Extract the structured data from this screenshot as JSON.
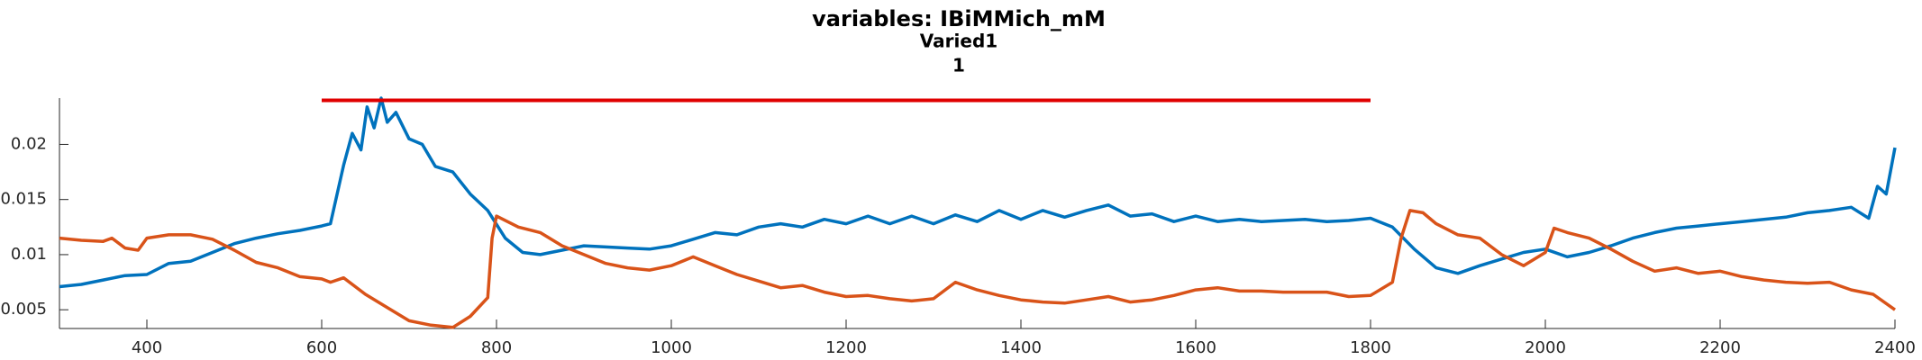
{
  "chart_data": {
    "type": "line",
    "title": "variables: IBiMMich_mM",
    "subtitle": "Varied1",
    "subtitle2": "1",
    "xlim": [
      300,
      2400
    ],
    "ylim": [
      0.0033,
      0.0242
    ],
    "xticks": [
      400,
      600,
      800,
      1000,
      1200,
      1400,
      1600,
      1800,
      2000,
      2200,
      2400
    ],
    "yticks": [
      0.005,
      0.01,
      0.015,
      0.02
    ],
    "reference_line": {
      "x": [
        600,
        1800
      ],
      "y": 0.024,
      "color": "#e00000"
    },
    "series": [
      {
        "color": "#0072bd",
        "x": [
          300,
          325,
          350,
          375,
          400,
          425,
          450,
          475,
          500,
          525,
          550,
          575,
          600,
          610,
          625,
          635,
          645,
          652,
          660,
          668,
          675,
          685,
          700,
          715,
          730,
          750,
          770,
          790,
          810,
          830,
          850,
          875,
          900,
          925,
          950,
          975,
          1000,
          1025,
          1050,
          1075,
          1100,
          1125,
          1150,
          1175,
          1200,
          1225,
          1250,
          1275,
          1300,
          1325,
          1350,
          1375,
          1400,
          1425,
          1450,
          1475,
          1500,
          1525,
          1550,
          1575,
          1600,
          1625,
          1650,
          1675,
          1700,
          1725,
          1750,
          1775,
          1800,
          1825,
          1850,
          1875,
          1900,
          1925,
          1950,
          1975,
          2000,
          2025,
          2050,
          2075,
          2100,
          2125,
          2150,
          2175,
          2200,
          2225,
          2250,
          2275,
          2300,
          2325,
          2350,
          2370,
          2380,
          2390,
          2400
        ],
        "values": [
          0.0071,
          0.0073,
          0.0077,
          0.0081,
          0.0082,
          0.0092,
          0.0094,
          0.0102,
          0.011,
          0.0115,
          0.0119,
          0.0122,
          0.0126,
          0.0128,
          0.0181,
          0.021,
          0.0195,
          0.0234,
          0.0215,
          0.0242,
          0.022,
          0.0229,
          0.0205,
          0.02,
          0.018,
          0.0175,
          0.0155,
          0.014,
          0.0115,
          0.0102,
          0.01,
          0.0104,
          0.0108,
          0.0107,
          0.0106,
          0.0105,
          0.0108,
          0.0114,
          0.012,
          0.0118,
          0.0125,
          0.0128,
          0.0125,
          0.0132,
          0.0128,
          0.0135,
          0.0128,
          0.0135,
          0.0128,
          0.0136,
          0.013,
          0.014,
          0.0132,
          0.014,
          0.0134,
          0.014,
          0.0145,
          0.0135,
          0.0137,
          0.013,
          0.0135,
          0.013,
          0.0132,
          0.013,
          0.0131,
          0.0132,
          0.013,
          0.0131,
          0.0133,
          0.0125,
          0.0105,
          0.0088,
          0.0083,
          0.009,
          0.0096,
          0.0102,
          0.0105,
          0.0098,
          0.0102,
          0.0108,
          0.0115,
          0.012,
          0.0124,
          0.0126,
          0.0128,
          0.013,
          0.0132,
          0.0134,
          0.0138,
          0.014,
          0.0143,
          0.0133,
          0.0162,
          0.0155,
          0.0197
        ]
      },
      {
        "color": "#d95319",
        "x": [
          300,
          325,
          350,
          360,
          375,
          390,
          400,
          425,
          450,
          475,
          500,
          525,
          550,
          575,
          600,
          610,
          625,
          650,
          675,
          700,
          725,
          750,
          770,
          790,
          795,
          800,
          825,
          850,
          875,
          900,
          925,
          950,
          975,
          1000,
          1025,
          1050,
          1075,
          1100,
          1125,
          1150,
          1175,
          1200,
          1225,
          1250,
          1275,
          1300,
          1325,
          1350,
          1375,
          1400,
          1425,
          1450,
          1475,
          1500,
          1525,
          1550,
          1575,
          1600,
          1625,
          1650,
          1675,
          1700,
          1725,
          1750,
          1775,
          1800,
          1825,
          1835,
          1845,
          1860,
          1875,
          1900,
          1925,
          1950,
          1975,
          2000,
          2010,
          2025,
          2050,
          2075,
          2100,
          2125,
          2150,
          2175,
          2200,
          2225,
          2250,
          2275,
          2300,
          2325,
          2350,
          2375,
          2400
        ],
        "values": [
          0.0115,
          0.0113,
          0.0112,
          0.0115,
          0.0106,
          0.0104,
          0.0115,
          0.0118,
          0.0118,
          0.0114,
          0.0104,
          0.0093,
          0.0088,
          0.008,
          0.0078,
          0.0075,
          0.0079,
          0.0064,
          0.0052,
          0.004,
          0.0036,
          0.0034,
          0.0044,
          0.0061,
          0.0115,
          0.0135,
          0.0125,
          0.012,
          0.0108,
          0.01,
          0.0092,
          0.0088,
          0.0086,
          0.009,
          0.0098,
          0.009,
          0.0082,
          0.0076,
          0.007,
          0.0072,
          0.0066,
          0.0062,
          0.0063,
          0.006,
          0.0058,
          0.006,
          0.0075,
          0.0068,
          0.0063,
          0.0059,
          0.0057,
          0.0056,
          0.0059,
          0.0062,
          0.0057,
          0.0059,
          0.0063,
          0.0068,
          0.007,
          0.0067,
          0.0067,
          0.0066,
          0.0066,
          0.0066,
          0.0062,
          0.0063,
          0.0075,
          0.0115,
          0.014,
          0.0138,
          0.0128,
          0.0118,
          0.0115,
          0.01,
          0.009,
          0.0102,
          0.0124,
          0.012,
          0.0115,
          0.0105,
          0.0094,
          0.0085,
          0.0088,
          0.0083,
          0.0085,
          0.008,
          0.0077,
          0.0075,
          0.0074,
          0.0075,
          0.0068,
          0.0064,
          0.005
        ]
      }
    ]
  }
}
